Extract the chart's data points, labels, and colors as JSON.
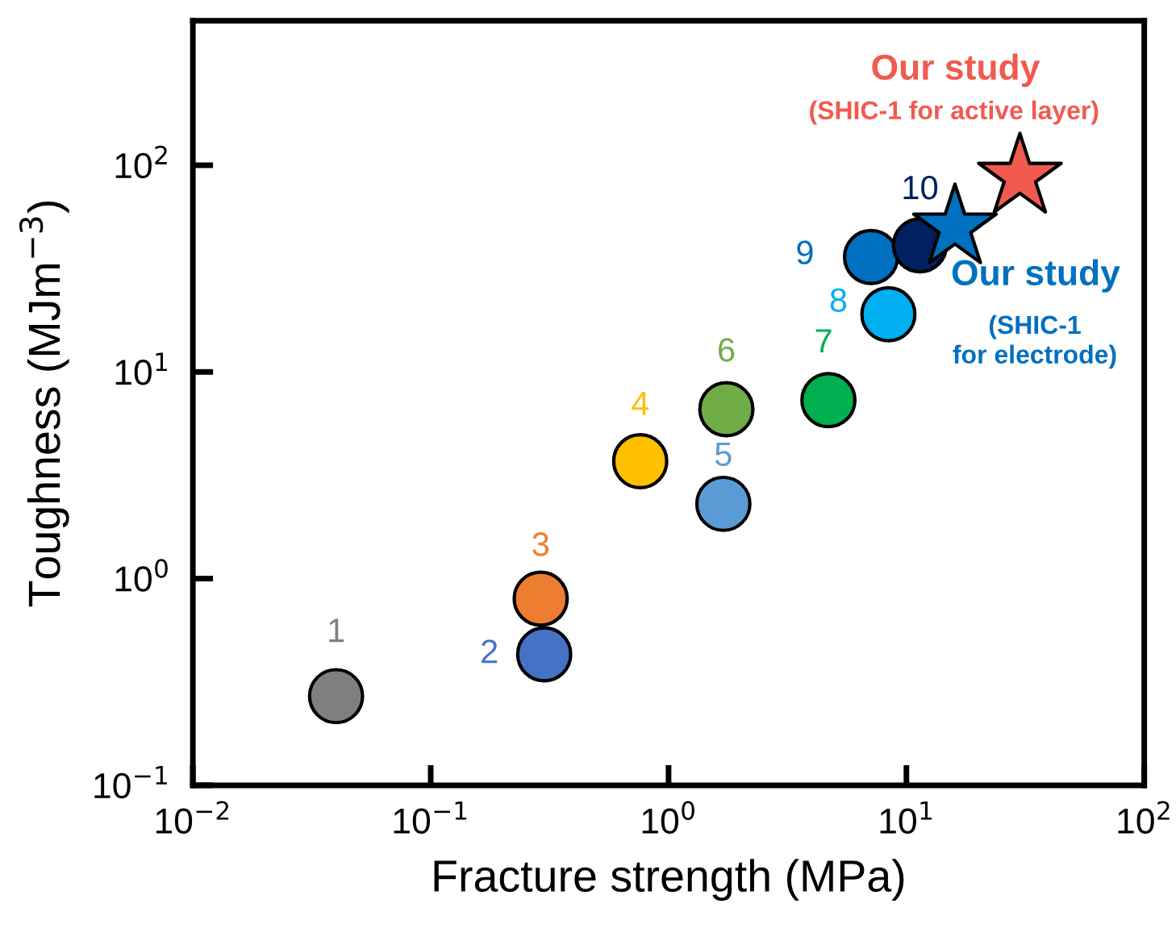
{
  "chart_data": {
    "type": "scatter",
    "xlabel": "Fracture strength (MPa)",
    "ylabel": "Toughness (MJm$^{−3}$)",
    "log": "xy",
    "grid": false,
    "xlim": [
      0.01,
      100
    ],
    "ylim": [
      0.1,
      500
    ],
    "xticks": [
      {
        "value": 0.01,
        "label": "10$^{−2}$"
      },
      {
        "value": 0.1,
        "label": "10$^{−1}$"
      },
      {
        "value": 1,
        "label": "10$^{0}$"
      },
      {
        "value": 10,
        "label": "10$^{1}$"
      },
      {
        "value": 100,
        "label": "10$^{2}$"
      }
    ],
    "yticks": [
      {
        "value": 0.1,
        "label": "10$^{−1}$"
      },
      {
        "value": 1,
        "label": "10$^{0}$"
      },
      {
        "value": 10,
        "label": "10$^{1}$"
      },
      {
        "value": 100,
        "label": "10$^{2}$"
      }
    ],
    "series": [
      {
        "name": "1",
        "color": "#7f7f7f",
        "marker": "circle",
        "x": [
          0.04
        ],
        "values": [
          0.27
        ]
      },
      {
        "name": "2",
        "color": "#4472c4",
        "marker": "circle",
        "x": [
          0.3
        ],
        "values": [
          0.43
        ]
      },
      {
        "name": "3",
        "color": "#ed7d31",
        "marker": "circle",
        "x": [
          0.29
        ],
        "values": [
          0.8
        ]
      },
      {
        "name": "4",
        "color": "#ffc000",
        "marker": "circle",
        "x": [
          0.76
        ],
        "values": [
          3.7
        ]
      },
      {
        "name": "5",
        "color": "#5b9bd5",
        "marker": "circle",
        "x": [
          1.7
        ],
        "values": [
          2.3
        ]
      },
      {
        "name": "6",
        "color": "#70ad47",
        "marker": "circle",
        "x": [
          1.75
        ],
        "values": [
          6.6
        ]
      },
      {
        "name": "7",
        "color": "#00b050",
        "marker": "circle",
        "x": [
          4.7
        ],
        "values": [
          7.3
        ]
      },
      {
        "name": "8",
        "color": "#00b0f0",
        "marker": "circle",
        "x": [
          8.4
        ],
        "values": [
          19
        ]
      },
      {
        "name": "9",
        "color": "#0070c0",
        "marker": "circle",
        "x": [
          7.1
        ],
        "values": [
          36
        ]
      },
      {
        "name": "10",
        "color": "#002060",
        "marker": "circle",
        "x": [
          11.4
        ],
        "values": [
          41
        ]
      },
      {
        "name": "Our study",
        "color": "#0070c0",
        "marker": "star",
        "x": [
          16
        ],
        "values": [
          50
        ]
      },
      {
        "name": "Our study",
        "color": "#f25a50",
        "marker": "star",
        "x": [
          30
        ],
        "values": [
          88
        ]
      }
    ],
    "annotations": [
      "(SHIC-1\nfor electrode)",
      "(SHIC-1 for active layer)"
    ]
  }
}
